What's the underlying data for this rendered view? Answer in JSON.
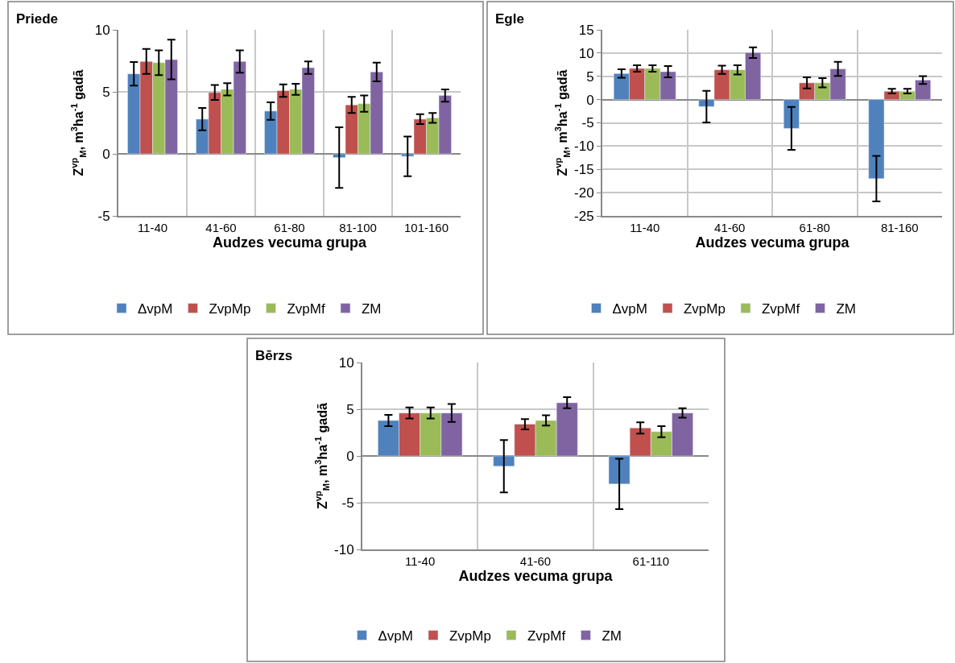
{
  "chart_data": [
    {
      "type": "bar",
      "title": "Priede",
      "xlabel": "Audzes vecuma grupa",
      "ylabel": "Z$^{vp}$$_{M}$, m$^{3}$ha$^{-1}$ gadā",
      "categories": [
        "11-40",
        "41-60",
        "61-80",
        "81-100",
        "101-160"
      ],
      "ylim": [
        -5,
        10
      ],
      "yticks": [
        -5,
        0,
        5,
        10
      ],
      "grid": true,
      "legend": "bottom",
      "series": [
        {
          "name": "ΔvpM",
          "color": "#4f81bd",
          "values": [
            6.45,
            2.8,
            3.45,
            -0.3,
            -0.2
          ],
          "errors": [
            0.95,
            0.9,
            0.7,
            2.45,
            1.6
          ]
        },
        {
          "name": "ZvpMp",
          "color": "#c0504d",
          "values": [
            7.45,
            4.95,
            5.1,
            3.95,
            2.8
          ],
          "errors": [
            1.0,
            0.6,
            0.5,
            0.65,
            0.4
          ]
        },
        {
          "name": "ZvpMf",
          "color": "#9bbb59",
          "values": [
            7.35,
            5.2,
            5.2,
            4.05,
            2.9
          ],
          "errors": [
            1.0,
            0.5,
            0.45,
            0.65,
            0.4
          ]
        },
        {
          "name": "ZM",
          "color": "#8064a2",
          "values": [
            7.6,
            7.45,
            6.95,
            6.6,
            4.7
          ],
          "errors": [
            1.6,
            0.9,
            0.5,
            0.75,
            0.5
          ]
        }
      ]
    },
    {
      "type": "bar",
      "title": "Egle",
      "xlabel": "Audzes vecuma grupa",
      "ylabel": "Z$^{vp}$$_{M}$, m$^{3}$ha$^{-1}$ gadā",
      "categories": [
        "11-40",
        "41-60",
        "61-80",
        "81-160"
      ],
      "ylim": [
        -25,
        15
      ],
      "yticks": [
        -25,
        -20,
        -15,
        -10,
        -5,
        0,
        5,
        10,
        15
      ],
      "grid": true,
      "legend": "bottom",
      "series": [
        {
          "name": "ΔvpM",
          "color": "#4f81bd",
          "values": [
            5.6,
            -1.5,
            -6.2,
            -17.0
          ],
          "errors": [
            0.9,
            3.4,
            4.6,
            4.9
          ]
        },
        {
          "name": "ZvpMp",
          "color": "#c0504d",
          "values": [
            6.7,
            6.4,
            3.6,
            1.8
          ],
          "errors": [
            0.7,
            0.9,
            1.2,
            0.5
          ]
        },
        {
          "name": "ZvpMf",
          "color": "#9bbb59",
          "values": [
            6.7,
            6.4,
            3.6,
            1.8
          ],
          "errors": [
            0.7,
            1.0,
            1.0,
            0.5
          ]
        },
        {
          "name": "ZM",
          "color": "#8064a2",
          "values": [
            6.0,
            10.1,
            6.6,
            4.2
          ],
          "errors": [
            1.2,
            1.15,
            1.5,
            0.85
          ]
        }
      ]
    },
    {
      "type": "bar",
      "title": "Bērzs",
      "xlabel": "Audzes vecuma grupa",
      "ylabel": "Z$^{vp}$$_{M}$, m$^{3}$ha$^{-1}$ gadā",
      "categories": [
        "11-40",
        "41-60",
        "61-110"
      ],
      "ylim": [
        -10,
        10
      ],
      "yticks": [
        -10,
        -5,
        0,
        5,
        10
      ],
      "grid": true,
      "legend": "bottom",
      "series": [
        {
          "name": "ΔvpM",
          "color": "#4f81bd",
          "values": [
            3.8,
            -1.1,
            -3.0
          ],
          "errors": [
            0.6,
            2.8,
            2.7
          ]
        },
        {
          "name": "ZvpMp",
          "color": "#c0504d",
          "values": [
            4.6,
            3.4,
            3.0
          ],
          "errors": [
            0.6,
            0.55,
            0.6
          ]
        },
        {
          "name": "ZvpMf",
          "color": "#9bbb59",
          "values": [
            4.6,
            3.8,
            2.6
          ],
          "errors": [
            0.6,
            0.55,
            0.6
          ]
        },
        {
          "name": "ZM",
          "color": "#8064a2",
          "values": [
            4.6,
            5.7,
            4.6
          ],
          "errors": [
            0.95,
            0.6,
            0.5
          ]
        }
      ]
    }
  ]
}
